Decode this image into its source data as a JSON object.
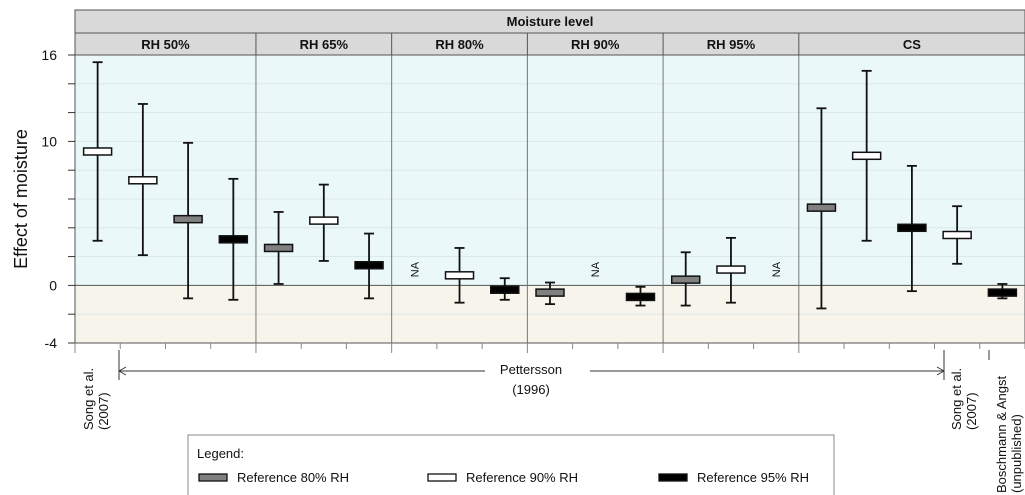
{
  "chart_data": {
    "type": "boxplot",
    "title": "Moisture level",
    "ylabel": "Effect of moisture",
    "ylim": [
      -4,
      16
    ],
    "yticks": [
      16,
      10,
      0,
      -4
    ],
    "groups": [
      {
        "label": "RH 50%",
        "slots": 4
      },
      {
        "label": "RH 65%",
        "slots": 3
      },
      {
        "label": "RH 80%",
        "slots": 3
      },
      {
        "label": "RH 90%",
        "slots": 3
      },
      {
        "label": "RH 95%",
        "slots": 3
      },
      {
        "label": "CS",
        "slots": 5
      }
    ],
    "series": [
      {
        "name": "Reference 80% RH",
        "color": "#808080"
      },
      {
        "name": "Reference 90% RH",
        "color": "#ffffff"
      },
      {
        "name": "Reference 95% RH",
        "color": "#000000"
      }
    ],
    "points": [
      {
        "group": 0,
        "slot": 0,
        "series": 1,
        "value": 9.3,
        "low": 3.1,
        "high": 15.5
      },
      {
        "group": 0,
        "slot": 1,
        "series": 1,
        "value": 7.3,
        "low": 2.1,
        "high": 12.6
      },
      {
        "group": 0,
        "slot": 2,
        "series": 0,
        "value": 4.6,
        "low": -0.9,
        "high": 9.9
      },
      {
        "group": 0,
        "slot": 3,
        "series": 2,
        "value": 3.2,
        "low": -1.0,
        "high": 7.4
      },
      {
        "group": 1,
        "slot": 0,
        "series": 0,
        "value": 2.6,
        "low": 0.1,
        "high": 5.1
      },
      {
        "group": 1,
        "slot": 1,
        "series": 1,
        "value": 4.5,
        "low": 1.7,
        "high": 7.0
      },
      {
        "group": 1,
        "slot": 2,
        "series": 2,
        "value": 1.4,
        "low": -0.9,
        "high": 3.6
      },
      {
        "group": 2,
        "slot": 1,
        "series": 1,
        "value": 0.7,
        "low": -1.2,
        "high": 2.6
      },
      {
        "group": 2,
        "slot": 2,
        "series": 2,
        "value": -0.3,
        "low": -1.0,
        "high": 0.5
      },
      {
        "group": 3,
        "slot": 0,
        "series": 0,
        "value": -0.5,
        "low": -1.3,
        "high": 0.2
      },
      {
        "group": 3,
        "slot": 2,
        "series": 2,
        "value": -0.8,
        "low": -1.4,
        "high": -0.1
      },
      {
        "group": 4,
        "slot": 0,
        "series": 0,
        "value": 0.4,
        "low": -1.4,
        "high": 2.3
      },
      {
        "group": 4,
        "slot": 1,
        "series": 1,
        "value": 1.1,
        "low": -1.2,
        "high": 3.3
      },
      {
        "group": 5,
        "slot": 0,
        "series": 0,
        "value": 5.4,
        "low": -1.6,
        "high": 12.3
      },
      {
        "group": 5,
        "slot": 1,
        "series": 1,
        "value": 9.0,
        "low": 3.1,
        "high": 14.9
      },
      {
        "group": 5,
        "slot": 2,
        "series": 2,
        "value": 4.0,
        "low": -0.4,
        "high": 8.3
      },
      {
        "group": 5,
        "slot": 3,
        "series": 1,
        "value": 3.5,
        "low": 1.5,
        "high": 5.5
      },
      {
        "group": 5,
        "slot": 4,
        "series": 2,
        "value": -0.5,
        "low": -0.9,
        "high": 0.1
      }
    ],
    "na": [
      {
        "group": 2,
        "slot": 0,
        "label": "NA"
      },
      {
        "group": 3,
        "slot": 1,
        "label": "NA"
      },
      {
        "group": 4,
        "slot": 2,
        "label": "NA"
      }
    ],
    "sources": {
      "song_left": [
        "Song et al.",
        "(2007)"
      ],
      "pettersson": [
        "Pettersson",
        "(1996)"
      ],
      "song_right": [
        "Song et al.",
        "(2007)"
      ],
      "boschmann": [
        "Boschmann & Angst",
        "(unpublished)"
      ]
    },
    "legend": {
      "title": "Legend:"
    }
  }
}
